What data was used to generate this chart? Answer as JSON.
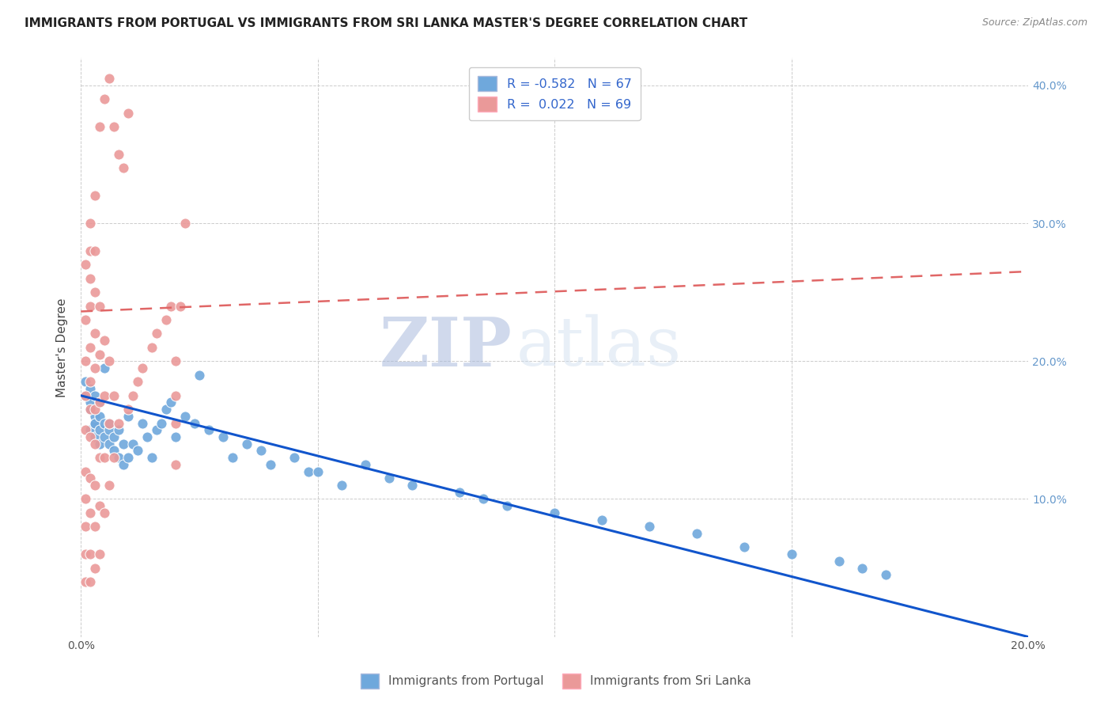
{
  "title": "IMMIGRANTS FROM PORTUGAL VS IMMIGRANTS FROM SRI LANKA MASTER'S DEGREE CORRELATION CHART",
  "source": "Source: ZipAtlas.com",
  "ylabel": "Master's Degree",
  "watermark_zip": "ZIP",
  "watermark_atlas": "atlas",
  "xlim": [
    0.0,
    0.2
  ],
  "ylim": [
    0.0,
    0.42
  ],
  "legend_R_blue": "-0.582",
  "legend_N_blue": "67",
  "legend_R_pink": " 0.022",
  "legend_N_pink": "69",
  "blue_color": "#6FA8DC",
  "pink_color": "#EA9999",
  "blue_line_color": "#1155CC",
  "pink_line_color": "#E06666",
  "background_color": "#FFFFFF",
  "grid_color": "#CCCCCC",
  "title_color": "#222222",
  "portugal_trend_x": [
    0.0,
    0.2
  ],
  "portugal_trend_y": [
    0.175,
    0.0
  ],
  "srilanka_trend_x": [
    0.0,
    0.2
  ],
  "srilanka_trend_y": [
    0.236,
    0.265
  ],
  "portugal_x": [
    0.001,
    0.001,
    0.002,
    0.002,
    0.002,
    0.002,
    0.003,
    0.003,
    0.003,
    0.003,
    0.003,
    0.004,
    0.004,
    0.004,
    0.004,
    0.005,
    0.005,
    0.005,
    0.006,
    0.006,
    0.006,
    0.007,
    0.007,
    0.008,
    0.008,
    0.009,
    0.009,
    0.01,
    0.01,
    0.011,
    0.012,
    0.013,
    0.014,
    0.015,
    0.016,
    0.017,
    0.018,
    0.019,
    0.02,
    0.022,
    0.024,
    0.025,
    0.027,
    0.03,
    0.032,
    0.035,
    0.038,
    0.04,
    0.045,
    0.048,
    0.05,
    0.055,
    0.06,
    0.065,
    0.07,
    0.08,
    0.085,
    0.09,
    0.1,
    0.11,
    0.12,
    0.13,
    0.14,
    0.15,
    0.16,
    0.165,
    0.17
  ],
  "portugal_y": [
    0.175,
    0.185,
    0.15,
    0.165,
    0.17,
    0.18,
    0.145,
    0.155,
    0.16,
    0.175,
    0.155,
    0.14,
    0.15,
    0.16,
    0.17,
    0.145,
    0.155,
    0.195,
    0.14,
    0.15,
    0.155,
    0.135,
    0.145,
    0.13,
    0.15,
    0.125,
    0.14,
    0.13,
    0.16,
    0.14,
    0.135,
    0.155,
    0.145,
    0.13,
    0.15,
    0.155,
    0.165,
    0.17,
    0.145,
    0.16,
    0.155,
    0.19,
    0.15,
    0.145,
    0.13,
    0.14,
    0.135,
    0.125,
    0.13,
    0.12,
    0.12,
    0.11,
    0.125,
    0.115,
    0.11,
    0.105,
    0.1,
    0.095,
    0.09,
    0.085,
    0.08,
    0.075,
    0.065,
    0.06,
    0.055,
    0.05,
    0.045
  ],
  "srilanka_x": [
    0.001,
    0.001,
    0.001,
    0.001,
    0.001,
    0.001,
    0.001,
    0.001,
    0.001,
    0.001,
    0.002,
    0.002,
    0.002,
    0.002,
    0.002,
    0.002,
    0.002,
    0.002,
    0.002,
    0.002,
    0.002,
    0.002,
    0.003,
    0.003,
    0.003,
    0.003,
    0.003,
    0.003,
    0.003,
    0.003,
    0.003,
    0.003,
    0.004,
    0.004,
    0.004,
    0.004,
    0.004,
    0.004,
    0.004,
    0.005,
    0.005,
    0.005,
    0.005,
    0.005,
    0.006,
    0.006,
    0.006,
    0.006,
    0.007,
    0.007,
    0.007,
    0.008,
    0.008,
    0.009,
    0.01,
    0.01,
    0.011,
    0.012,
    0.013,
    0.015,
    0.016,
    0.018,
    0.019,
    0.02,
    0.02,
    0.02,
    0.02,
    0.021,
    0.022
  ],
  "srilanka_y": [
    0.04,
    0.06,
    0.08,
    0.1,
    0.12,
    0.15,
    0.175,
    0.2,
    0.23,
    0.27,
    0.04,
    0.06,
    0.09,
    0.115,
    0.145,
    0.165,
    0.185,
    0.21,
    0.24,
    0.26,
    0.28,
    0.3,
    0.05,
    0.08,
    0.11,
    0.14,
    0.165,
    0.195,
    0.22,
    0.25,
    0.28,
    0.32,
    0.06,
    0.095,
    0.13,
    0.17,
    0.205,
    0.24,
    0.37,
    0.09,
    0.13,
    0.175,
    0.215,
    0.39,
    0.11,
    0.155,
    0.2,
    0.405,
    0.13,
    0.175,
    0.37,
    0.155,
    0.35,
    0.34,
    0.165,
    0.38,
    0.175,
    0.185,
    0.195,
    0.21,
    0.22,
    0.23,
    0.24,
    0.125,
    0.155,
    0.175,
    0.2,
    0.24,
    0.3
  ]
}
